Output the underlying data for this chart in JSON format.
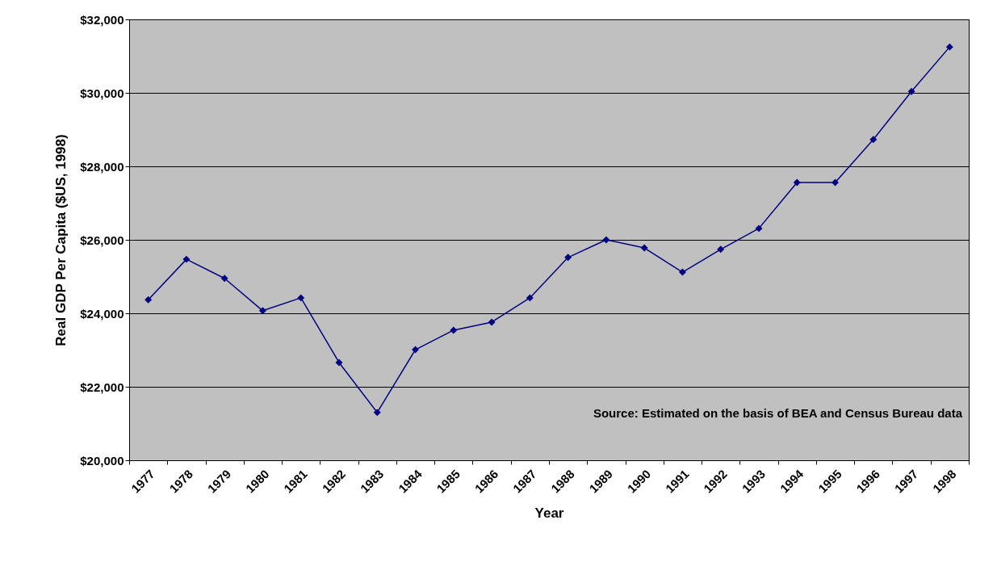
{
  "chart_data": {
    "type": "line",
    "xlabel": "Year",
    "ylabel": "Real GDP Per Capita ($US, 1998)",
    "categories": [
      "1977",
      "1978",
      "1979",
      "1980",
      "1981",
      "1982",
      "1983",
      "1984",
      "1985",
      "1986",
      "1987",
      "1988",
      "1989",
      "1990",
      "1991",
      "1992",
      "1993",
      "1994",
      "1995",
      "1996",
      "1997",
      "1998"
    ],
    "series": [
      {
        "color": "#000080",
        "values": [
          24370,
          25470,
          24950,
          24070,
          24420,
          22660,
          21300,
          23010,
          23540,
          23760,
          24420,
          25520,
          26000,
          25780,
          25120,
          25740,
          26310,
          27560,
          27560,
          28730,
          30040,
          31250
        ]
      }
    ],
    "ylim": [
      20000,
      32000
    ],
    "yticks": [
      {
        "value": 20000,
        "label": "$20,000"
      },
      {
        "value": 22000,
        "label": "$22,000"
      },
      {
        "value": 24000,
        "label": "$24,000"
      },
      {
        "value": 26000,
        "label": "$26,000"
      },
      {
        "value": 28000,
        "label": "$28,000"
      },
      {
        "value": 30000,
        "label": "$30,000"
      },
      {
        "value": 32000,
        "label": "$32,000"
      }
    ],
    "grid": "y",
    "marker": "diamond",
    "line_style": "solid",
    "annotations": [
      "Source:  Estimated on the basis of BEA and Census Bureau data"
    ]
  }
}
